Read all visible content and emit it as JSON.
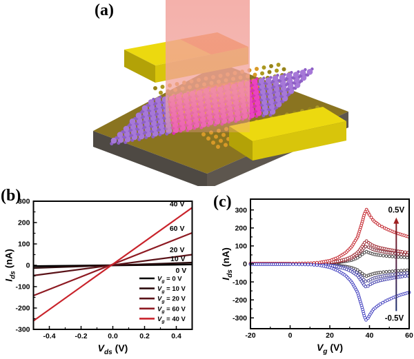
{
  "figure": {
    "panels": {
      "a": {
        "label": "(a)",
        "illustration": {
          "beam_color": "#f2a39c",
          "substrate_top": "#8a7420",
          "substrate_left": "#4e4943",
          "substrate_right": "#5d564e",
          "electrode_top": "#ecd90f",
          "electrode_front": "#d8c50b",
          "electrode_end": "#b3a207",
          "hot_spot": "#f07812",
          "glow": "#ff7300",
          "glow_bright": "#ff9a00",
          "lattice_a": "#96831a",
          "lattice_b": "#ab9820",
          "lattice_hot": "#d89a28",
          "mol_purple": "#a678d8",
          "mol_purple_dark": "#8d5fc5",
          "mol_pink": "#ea43c0",
          "mol_pink_dark": "#d633aa"
        }
      },
      "b": {
        "label": "(b)"
      },
      "c": {
        "label": "(c)"
      }
    }
  },
  "chart_data": [
    {
      "type": "line",
      "panel": "b",
      "title": "",
      "xlabel": "V|ds| (V)",
      "ylabel": "I|ds| (nA)",
      "xlim": [
        -0.5,
        0.5
      ],
      "ylim": [
        -300,
        300
      ],
      "xticks": [
        {
          "v": -0.4,
          "t": "-0.4"
        },
        {
          "v": -0.2,
          "t": "-0.2"
        },
        {
          "v": 0,
          "t": "0.0"
        },
        {
          "v": 0.2,
          "t": "0.2"
        },
        {
          "v": 0.4,
          "t": "0.4"
        }
      ],
      "yticks": [
        {
          "v": 300,
          "t": "300"
        },
        {
          "v": 200,
          "t": "200"
        },
        {
          "v": 100,
          "t": "100"
        },
        {
          "v": 0,
          "t": "0"
        },
        {
          "v": -100,
          "t": "-100"
        },
        {
          "v": -200,
          "t": "-200"
        },
        {
          "v": -300,
          "t": "-300"
        }
      ],
      "xminor": [
        -0.3,
        -0.1,
        0.1,
        0.3
      ],
      "yminor": [
        -250,
        -150,
        -50,
        50,
        150,
        250
      ],
      "series": [
        {
          "label": "V|g| = 0 V",
          "color": "#000000",
          "x": [
            -0.5,
            0.5
          ],
          "y": [
            -4,
            4
          ],
          "width": 2.6
        },
        {
          "label": "V|g| = 10 V",
          "color": "#2b0b0d",
          "x": [
            -0.5,
            0.5
          ],
          "y": [
            -13,
            13
          ],
          "width": 2.2
        },
        {
          "label": "V|g| = 20 V",
          "color": "#5a1218",
          "x": [
            -0.5,
            0.5
          ],
          "y": [
            -48,
            50
          ],
          "width": 2.2
        },
        {
          "label": "V|g| = 60 V",
          "color": "#8e1a22",
          "x": [
            -0.5,
            0.5
          ],
          "y": [
            -142,
            152
          ],
          "width": 2.2
        },
        {
          "label": "V|g| = 40 V",
          "color": "#c9232b",
          "x": [
            -0.5,
            0.5
          ],
          "y": [
            -260,
            270
          ],
          "width": 2.2
        }
      ],
      "curve_labels": [
        {
          "text": "40 V",
          "x": 0.405,
          "y": 287
        },
        {
          "text": "60 V",
          "x": 0.405,
          "y": 172
        },
        {
          "text": "20 V",
          "x": 0.405,
          "y": 72
        },
        {
          "text": "10 V",
          "x": 0.41,
          "y": 30
        },
        {
          "text": "0 V",
          "x": 0.43,
          "y": -24
        }
      ],
      "legend": true
    },
    {
      "type": "scatter",
      "panel": "c",
      "title": "",
      "xlabel": "V|g| (V)",
      "ylabel": "I|ds| (nA)",
      "xlim": [
        -20,
        60
      ],
      "ylim": [
        -360,
        360
      ],
      "xticks": [
        {
          "v": -20,
          "t": "-20"
        },
        {
          "v": 0,
          "t": "0"
        },
        {
          "v": 20,
          "t": "20"
        },
        {
          "v": 40,
          "t": "40"
        },
        {
          "v": 60,
          "t": "60"
        }
      ],
      "yticks": [
        {
          "v": 300,
          "t": "300"
        },
        {
          "v": 200,
          "t": "200"
        },
        {
          "v": 100,
          "t": "100"
        },
        {
          "v": 0,
          "t": "0"
        },
        {
          "v": -100,
          "t": "-100"
        },
        {
          "v": -200,
          "t": "-200"
        },
        {
          "v": -300,
          "t": "-300"
        }
      ],
      "xminor": [
        -10,
        10,
        30,
        50
      ],
      "yminor": [
        -250,
        -150,
        -50,
        50,
        150,
        250
      ],
      "x": [
        -20,
        -10,
        0,
        5,
        10,
        15,
        20,
        24,
        28,
        31,
        34,
        36,
        37.5,
        38.5,
        40,
        42,
        45,
        48,
        52,
        56,
        60
      ],
      "series": [
        {
          "color": "#3f3b3b",
          "y": [
            0,
            0,
            0,
            1,
            1,
            2,
            4,
            8,
            14,
            21,
            34,
            50,
            63,
            68,
            61,
            54,
            48,
            44,
            40,
            37,
            34
          ]
        },
        {
          "color": "#413d3d",
          "y": [
            0,
            0,
            0,
            -1,
            -1,
            -2,
            -4,
            -8,
            -14,
            -21,
            -34,
            -50,
            -63,
            -68,
            -61,
            -54,
            -48,
            -44,
            -40,
            -37,
            -34
          ]
        },
        {
          "color": "#7c2733",
          "y": [
            1,
            1,
            1,
            1,
            1,
            3,
            6,
            12,
            20,
            31,
            50,
            73,
            92,
            100,
            90,
            79,
            71,
            65,
            59,
            54,
            50
          ]
        },
        {
          "color": "#4b4793",
          "y": [
            -1,
            -1,
            -1,
            -1,
            -1,
            -3,
            -6,
            -12,
            -20,
            -31,
            -50,
            -73,
            -92,
            -100,
            -90,
            -79,
            -71,
            -65,
            -59,
            -54,
            -50
          ]
        },
        {
          "color": "#9c262e",
          "y": [
            1,
            1,
            1,
            1,
            2,
            3,
            8,
            15,
            26,
            40,
            63,
            92,
            118,
            127,
            114,
            101,
            90,
            83,
            75,
            68,
            63
          ]
        },
        {
          "color": "#4340ad",
          "y": [
            -1,
            -1,
            -1,
            -2,
            -2,
            -3,
            -8,
            -16,
            -28,
            -42,
            -66,
            -96,
            -122,
            -130,
            -117,
            -104,
            -93,
            -86,
            -78,
            -71,
            -66
          ]
        },
        {
          "color": "#c4262e",
          "y": [
            2,
            2,
            2,
            3,
            4,
            8,
            18,
            35,
            62,
            95,
            150,
            220,
            280,
            302,
            272,
            240,
            215,
            197,
            178,
            163,
            150
          ]
        },
        {
          "color": "#4543c0",
          "y": [
            -2,
            -2,
            -2,
            -3,
            -4,
            -8,
            -19,
            -37,
            -65,
            -100,
            -158,
            -231,
            -294,
            -317,
            -286,
            -252,
            -226,
            -207,
            -187,
            -171,
            -158
          ]
        }
      ],
      "annotations": [
        {
          "text": "0.5V",
          "color": "#cc2229",
          "x": 53.5,
          "y": 300
        },
        {
          "text": "-0.5V",
          "color": "#2a2ab5",
          "x": 52.5,
          "y": -300
        }
      ],
      "arrow": {
        "x": 53.5,
        "y1": -262,
        "y2": 258,
        "bottom_color": "#1c2d6e",
        "top_color": "#8c1c1c",
        "head_color": "#a02020"
      }
    }
  ]
}
